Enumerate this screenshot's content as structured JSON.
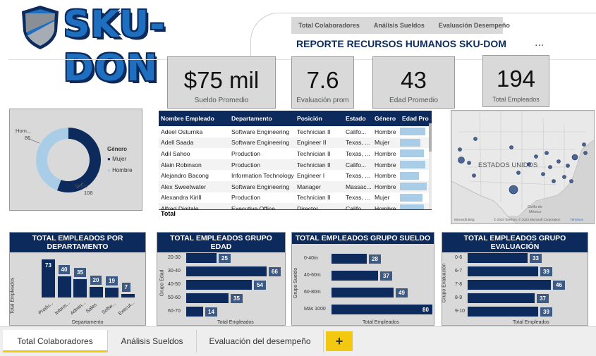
{
  "header": {
    "logo_text": "SKU-DON",
    "nav": [
      "Total Colaboradores",
      "Análisis Sueldos",
      "Evaluación Desempeño"
    ],
    "report_title": "REPORTE RECURSOS HUMANOS  SKU-DOM",
    "more": "..."
  },
  "kpis": [
    {
      "value": "$75 mil",
      "label": "Sueldo Promedio"
    },
    {
      "value": "7.6",
      "label": "Evaluación prom"
    },
    {
      "value": "43",
      "label": "Edad Promedio"
    },
    {
      "value": "194",
      "label": "Total Empleados"
    }
  ],
  "donut": {
    "legend_title": "Género",
    "slices": [
      {
        "name": "Mujer",
        "value": 108,
        "color": "#0d2a5c",
        "label": "Mujer",
        "count": "108"
      },
      {
        "name": "Hombre",
        "value": 86,
        "color": "#a9cde6",
        "label": "Hom...",
        "count": "86"
      }
    ]
  },
  "table": {
    "columns": [
      "Nombre Empleado",
      "Departamento",
      "Posición",
      "Estado",
      "Género",
      "Edad Pro"
    ],
    "rows": [
      {
        "name": "Adeel Osturnka",
        "dept": "Software Engineering",
        "pos": "Technician II",
        "state": "Califo...",
        "gender": "Hombre",
        "age": 0.95
      },
      {
        "name": "Adell Saada",
        "dept": "Software Engineering",
        "pos": "Engineer II",
        "state": "Texas, ...",
        "gender": "Mujer",
        "age": 0.75
      },
      {
        "name": "Adil Sahoo",
        "dept": "Production",
        "pos": "Technician II",
        "state": "Texas, ...",
        "gender": "Hombre",
        "age": 0.9
      },
      {
        "name": "Alain Robinson",
        "dept": "Production",
        "pos": "Technician II",
        "state": "Califo...",
        "gender": "Hombre",
        "age": 0.95
      },
      {
        "name": "Alejandro Bacong",
        "dept": "Information Technology",
        "pos": "Engineer I",
        "state": "Texas, ...",
        "gender": "Hombre",
        "age": 0.7
      },
      {
        "name": "Alex Sweetwater",
        "dept": "Software Engineering",
        "pos": "Manager",
        "state": "Massac...",
        "gender": "Hombre",
        "age": 1.0
      },
      {
        "name": "Alexandra Kirill",
        "dept": "Production",
        "pos": "Technician II",
        "state": "Texas, ...",
        "gender": "Mujer",
        "age": 0.85
      },
      {
        "name": "Alfred Digitale",
        "dept": "Executive Office",
        "pos": "Director",
        "state": "Califo...",
        "gender": "Hombre",
        "age": 0.9
      }
    ],
    "total_label": "Total"
  },
  "map": {
    "label": "ESTADOS UNIDOS",
    "gulf_label": "Golfo de\nMéxico",
    "mexico_label": "MÉXICO",
    "attribution": "© 2023 TomTom, © 2023 Microsoft Corporation",
    "terms": "Términos",
    "bing": "Microsoft Bing"
  },
  "charts": {
    "dept": {
      "title": "TOTAL EMPLEADOS POR DEPARTAMENTO",
      "ylabel": "Total Empleados",
      "xlabel": "Departamento",
      "categories": [
        "Produ...",
        "Inform...",
        "Admin...",
        "Sales",
        "Softw...",
        "Execut..."
      ],
      "values": [
        73,
        40,
        35,
        20,
        19,
        7
      ]
    },
    "age": {
      "title": "TOTAL EMPLEADOS GRUPO EDAD",
      "ylabel": "Grupo Edad",
      "xlabel": "Total Empleados",
      "categories": [
        "20-30",
        "30-40",
        "40-50",
        "50-60",
        "60-70"
      ],
      "values": [
        25,
        66,
        54,
        35,
        14
      ]
    },
    "salary": {
      "title": "TOTAL EMPLEADOS GRUPO SUELDO",
      "ylabel": "Grupo Sueldo",
      "xlabel": "Total Empleados",
      "categories": [
        "0-40m",
        "40-60m",
        "60-80m",
        "Más 1000"
      ],
      "values": [
        28,
        37,
        49,
        80
      ]
    },
    "eval": {
      "title": "TOTAL EMPLEADOS GRUPO EVALUACIÓN",
      "ylabel": "Grupo Evaluación",
      "xlabel": "Total Empleados",
      "categories": [
        "0-6",
        "6-7",
        "7-8",
        "8-9",
        "9-10"
      ],
      "values": [
        33,
        39,
        46,
        37,
        39
      ]
    }
  },
  "chart_data": [
    {
      "type": "bar",
      "title": "TOTAL EMPLEADOS POR DEPARTAMENTO",
      "xlabel": "Departamento",
      "ylabel": "Total Empleados",
      "categories": [
        "Produ...",
        "Inform...",
        "Admin...",
        "Sales",
        "Softw...",
        "Execut..."
      ],
      "values": [
        73,
        40,
        35,
        20,
        19,
        7
      ]
    },
    {
      "type": "bar",
      "title": "TOTAL EMPLEADOS GRUPO EDAD",
      "xlabel": "Total Empleados",
      "ylabel": "Grupo Edad",
      "categories": [
        "20-30",
        "30-40",
        "40-50",
        "50-60",
        "60-70"
      ],
      "values": [
        25,
        66,
        54,
        35,
        14
      ]
    },
    {
      "type": "bar",
      "title": "TOTAL EMPLEADOS GRUPO SUELDO",
      "xlabel": "Total Empleados",
      "ylabel": "Grupo Sueldo",
      "categories": [
        "0-40m",
        "40-60m",
        "60-80m",
        "Más 1000"
      ],
      "values": [
        28,
        37,
        49,
        80
      ]
    },
    {
      "type": "bar",
      "title": "TOTAL EMPLEADOS GRUPO EVALUACIÓN",
      "xlabel": "Total Empleados",
      "ylabel": "Grupo Evaluación",
      "categories": [
        "0-6",
        "6-7",
        "7-8",
        "8-9",
        "9-10"
      ],
      "values": [
        33,
        39,
        46,
        37,
        39
      ]
    },
    {
      "type": "pie",
      "title": "",
      "categories": [
        "Mujer",
        "Hombre"
      ],
      "values": [
        108,
        86
      ]
    }
  ],
  "tabs": {
    "items": [
      "Total Colaboradores",
      "Análisis Sueldos",
      "Evaluación del desempeño"
    ],
    "add": "+"
  }
}
